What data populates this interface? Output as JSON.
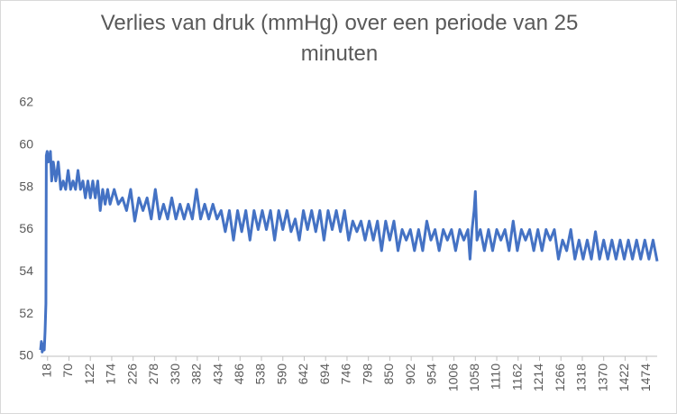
{
  "chart_data": {
    "type": "line",
    "title": "Verlies van druk (mmHg) over een periode van 25 minuten",
    "x": [
      1,
      3,
      5,
      8,
      10,
      12,
      14,
      15,
      17,
      20,
      25,
      28,
      32,
      38,
      44,
      50,
      56,
      62,
      68,
      74,
      80,
      86,
      92,
      98,
      104,
      110,
      116,
      122,
      128,
      134,
      140,
      146,
      152,
      158,
      164,
      170,
      180,
      190,
      200,
      210,
      220,
      230,
      240,
      250,
      260,
      270,
      280,
      290,
      300,
      310,
      320,
      330,
      340,
      350,
      360,
      370,
      380,
      390,
      400,
      410,
      420,
      430,
      440,
      450,
      460,
      470,
      480,
      490,
      500,
      510,
      520,
      530,
      540,
      550,
      560,
      570,
      580,
      590,
      600,
      610,
      620,
      630,
      640,
      650,
      660,
      670,
      680,
      690,
      700,
      710,
      720,
      730,
      740,
      750,
      760,
      770,
      780,
      790,
      800,
      810,
      820,
      830,
      840,
      850,
      860,
      870,
      880,
      890,
      900,
      910,
      920,
      930,
      940,
      950,
      960,
      970,
      980,
      990,
      1000,
      1010,
      1020,
      1030,
      1040,
      1045,
      1050,
      1055,
      1058,
      1062,
      1070,
      1080,
      1090,
      1100,
      1110,
      1120,
      1130,
      1140,
      1150,
      1160,
      1170,
      1180,
      1190,
      1200,
      1210,
      1220,
      1230,
      1240,
      1250,
      1260,
      1270,
      1280,
      1290,
      1300,
      1310,
      1320,
      1330,
      1340,
      1350,
      1360,
      1370,
      1380,
      1390,
      1400,
      1410,
      1420,
      1430,
      1440,
      1450,
      1460,
      1470,
      1480,
      1490,
      1500
    ],
    "series": [
      {
        "color": "#4472c4",
        "values": [
          50.3,
          50.7,
          50.2,
          50.6,
          50.3,
          51.2,
          52.5,
          59.5,
          59.7,
          59.2,
          59.7,
          58.3,
          59.2,
          58.3,
          59.2,
          57.9,
          58.3,
          57.9,
          58.8,
          57.9,
          58.3,
          57.9,
          58.8,
          57.9,
          58.3,
          57.5,
          58.3,
          57.5,
          58.3,
          57.5,
          58.3,
          56.9,
          57.9,
          57.2,
          57.9,
          57.2,
          57.9,
          57.2,
          57.5,
          56.9,
          57.9,
          56.4,
          57.5,
          56.9,
          57.5,
          56.5,
          57.9,
          56.5,
          57.2,
          56.5,
          57.5,
          56.5,
          57.2,
          56.5,
          57.2,
          56.5,
          57.9,
          56.5,
          57.2,
          56.5,
          57.2,
          56.5,
          56.9,
          55.9,
          56.9,
          55.5,
          56.9,
          55.9,
          56.9,
          55.5,
          56.9,
          56.0,
          56.9,
          56.0,
          56.9,
          55.5,
          56.9,
          56.0,
          56.9,
          55.9,
          56.5,
          55.5,
          56.9,
          56.0,
          56.9,
          55.9,
          56.9,
          55.5,
          56.9,
          56.0,
          56.9,
          55.9,
          56.9,
          55.5,
          56.4,
          55.9,
          56.4,
          55.5,
          56.4,
          55.5,
          56.4,
          55.0,
          56.4,
          55.5,
          56.4,
          55.0,
          56.0,
          55.5,
          56.0,
          55.0,
          56.0,
          55.0,
          56.4,
          55.5,
          56.0,
          55.0,
          56.0,
          55.5,
          56.0,
          55.0,
          56.0,
          55.5,
          56.0,
          54.6,
          56.0,
          56.9,
          57.8,
          55.5,
          56.0,
          55.0,
          56.0,
          55.0,
          56.0,
          55.5,
          56.0,
          55.0,
          56.4,
          55.0,
          56.0,
          55.5,
          56.0,
          55.0,
          56.0,
          55.0,
          56.0,
          55.5,
          56.0,
          54.6,
          55.5,
          55.0,
          56.0,
          54.6,
          55.5,
          54.6,
          55.5,
          54.6,
          55.9,
          54.6,
          55.5,
          54.6,
          55.5,
          54.6,
          55.5,
          54.6,
          55.5,
          54.6,
          55.5,
          54.6,
          55.5,
          54.6,
          55.5,
          54.5
        ]
      }
    ],
    "xlim": [
      1,
      1500
    ],
    "xticks": [
      18,
      70,
      122,
      174,
      226,
      278,
      330,
      382,
      434,
      486,
      538,
      590,
      642,
      694,
      746,
      798,
      850,
      902,
      954,
      1006,
      1058,
      1110,
      1162,
      1214,
      1266,
      1318,
      1370,
      1422,
      1474
    ],
    "ylim": [
      50,
      62
    ],
    "yticks": [
      50,
      52,
      54,
      56,
      58,
      60,
      62
    ],
    "grid": false
  }
}
